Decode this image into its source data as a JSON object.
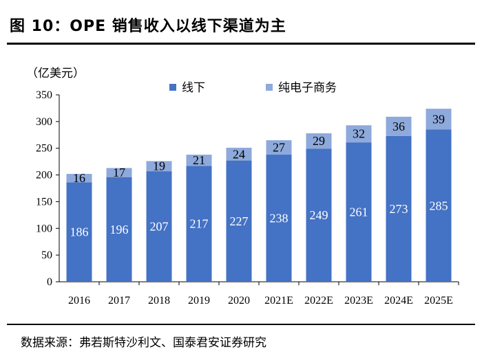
{
  "title": "图 10：OPE 销售收入以线下渠道为主",
  "source": "数据来源：弗若斯特沙利文、国泰君安证券研究",
  "colors": {
    "offline": "#4472C4",
    "ecommerce": "#8EA9DB"
  },
  "chart_data": {
    "type": "bar",
    "stacked": true,
    "unit_label": "（亿美元）",
    "categories": [
      "2016",
      "2017",
      "2018",
      "2019",
      "2020",
      "2021E",
      "2022E",
      "2023E",
      "2024E",
      "2025E"
    ],
    "series": [
      {
        "name": "线下",
        "values": [
          186,
          196,
          207,
          217,
          227,
          238,
          249,
          261,
          273,
          285
        ]
      },
      {
        "name": "纯电子商务",
        "values": [
          16,
          17,
          19,
          21,
          24,
          27,
          29,
          32,
          36,
          39
        ]
      }
    ],
    "ylim": [
      0,
      350
    ],
    "yticks": [
      0,
      50,
      100,
      150,
      200,
      250,
      300,
      350
    ],
    "grid": false,
    "legend_position": "top-right"
  }
}
